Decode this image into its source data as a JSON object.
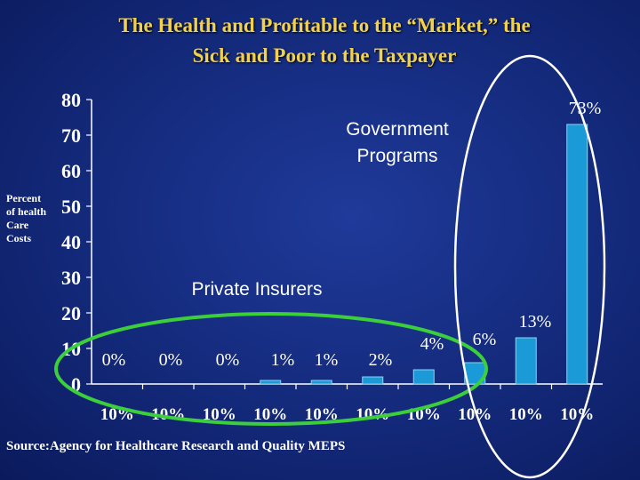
{
  "title_line1": "The Health and Profitable to the “Market,” the",
  "title_line2": "Sick and Poor to the Taxpayer",
  "ylabel": "Percent of health Care Costs",
  "source": "Source:Agency for Healthcare Research and Quality MEPS",
  "annotations": {
    "government": [
      "Government",
      "Programs"
    ],
    "private": "Private Insurers"
  },
  "colors": {
    "title": "#f2d24c",
    "text": "#ffffff",
    "bar": "#1a9ad6",
    "axis": "#ffffff",
    "private_oval": "#3ccf3c",
    "government_oval": "#ffffff"
  },
  "chart_data": {
    "type": "bar",
    "title": "The Health and Profitable to the “Market,” the Sick and Poor to the Taxpayer",
    "xlabel": "",
    "ylabel": "Percent of health Care Costs",
    "ylim": [
      0,
      80
    ],
    "yticks": [
      0,
      10,
      20,
      30,
      40,
      50,
      60,
      70,
      80
    ],
    "grid": false,
    "categories": [
      "10%",
      "10%",
      "10%",
      "10%",
      "10%",
      "10%",
      "10%",
      "10%",
      "10%",
      "10%"
    ],
    "values": [
      0,
      0,
      0,
      1,
      1,
      2,
      4,
      6,
      13,
      73
    ],
    "data_labels": [
      "0%",
      "0%",
      "0%",
      "1%",
      "1%",
      "2%",
      "4%",
      "6%",
      "13%",
      "73%"
    ]
  }
}
